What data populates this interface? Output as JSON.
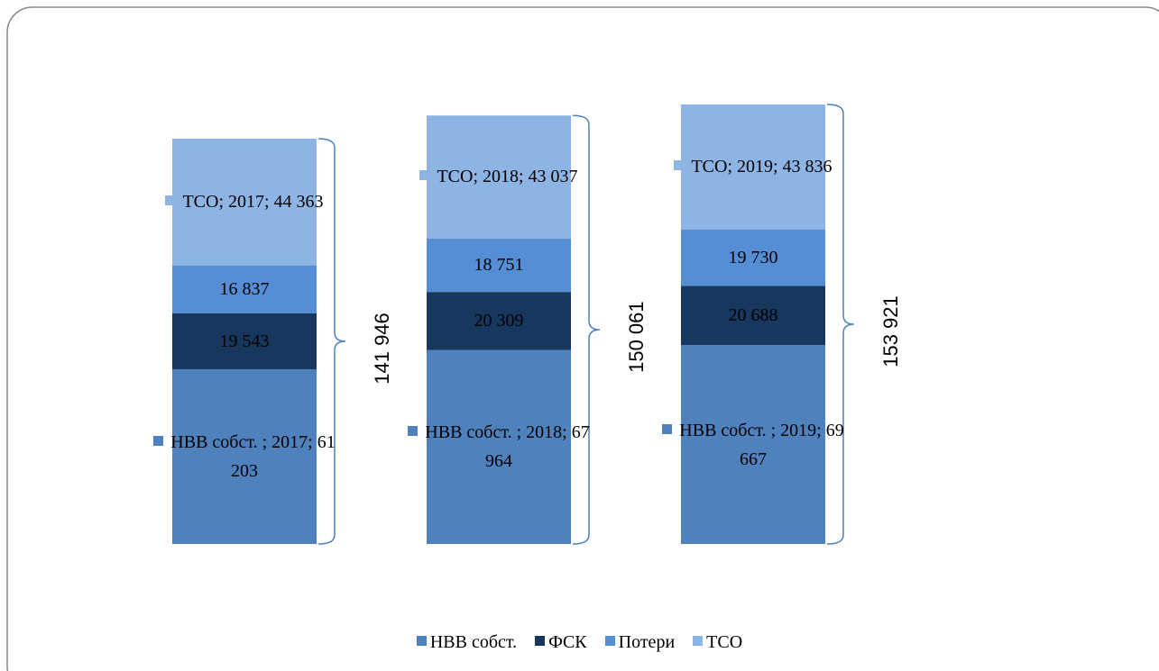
{
  "chart_data": {
    "type": "stacked_bar",
    "categories": [
      "2017",
      "2018",
      "2019"
    ],
    "series": [
      {
        "name": "НВВ собст.",
        "color": "#4f81bd",
        "values": [
          61203,
          67964,
          69667
        ],
        "value_labels": [
          "НВВ собст. ; 2017; 61 203",
          "НВВ собст. ; 2018; 67 964",
          "НВВ собст. ; 2019; 69 667"
        ]
      },
      {
        "name": "ФСК",
        "color": "#17375e",
        "values": [
          19543,
          20309,
          20688
        ],
        "value_labels": [
          "19 543",
          "20 309",
          "20 688"
        ]
      },
      {
        "name": "Потери",
        "color": "#558ed5",
        "values": [
          16837,
          18751,
          19730
        ],
        "value_labels": [
          "16 837",
          "18 751",
          "19 730"
        ]
      },
      {
        "name": "ТСО",
        "color": "#8eb4e3",
        "values": [
          44363,
          43037,
          43836
        ],
        "value_labels": [
          "ТСО; 2017; 44 363",
          "ТСО; 2018; 43 037",
          "ТСО; 2019; 43 836"
        ]
      }
    ],
    "totals": [
      141946,
      150061,
      153921
    ],
    "total_labels": [
      "141 946",
      "150 061",
      "153 921"
    ],
    "legend": "bottom"
  }
}
